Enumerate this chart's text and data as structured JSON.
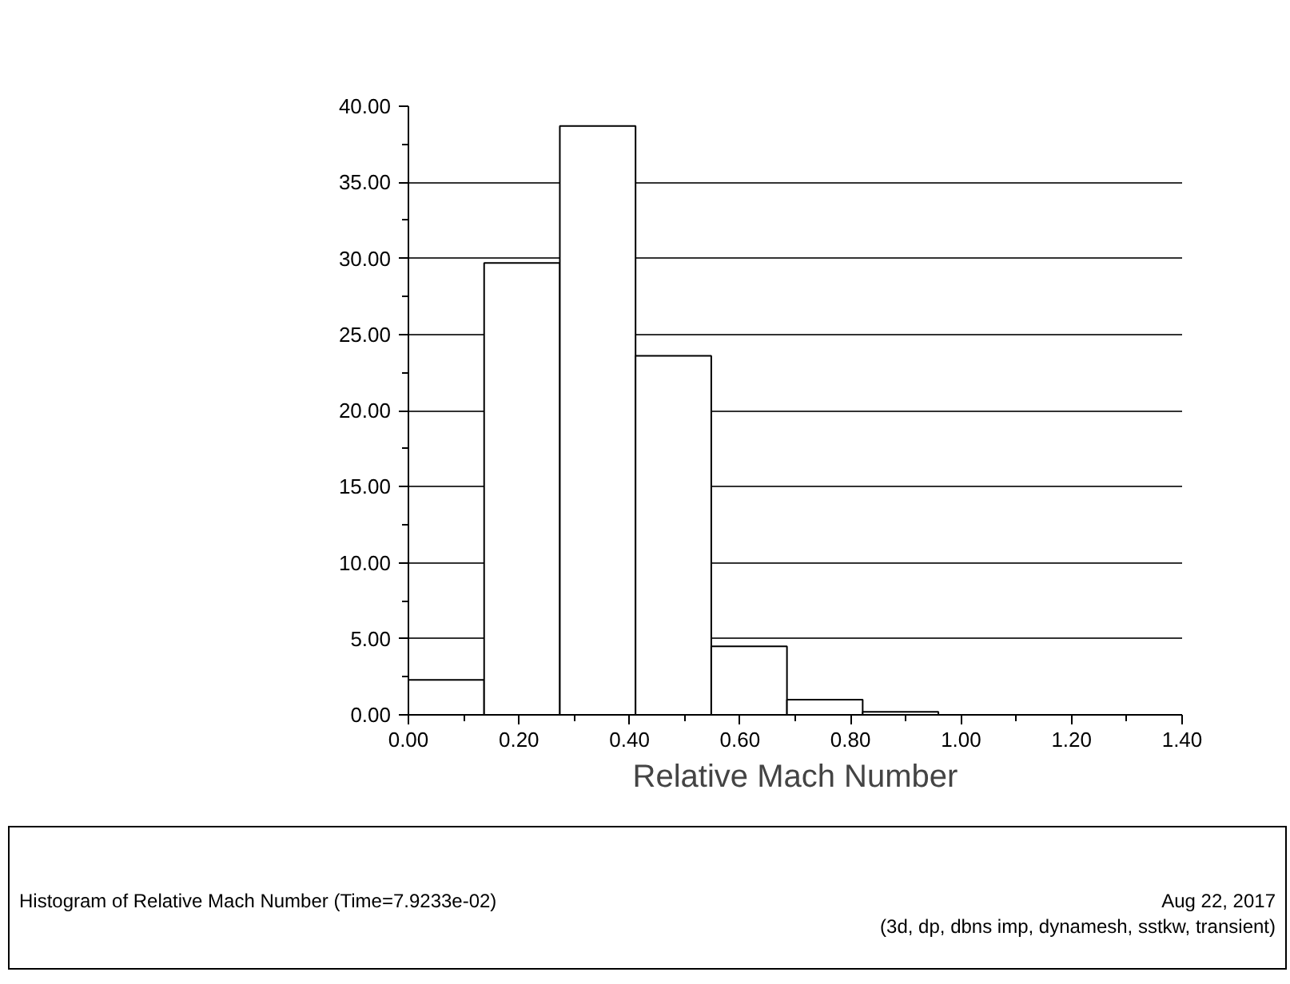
{
  "chart_data": {
    "type": "histogram",
    "xlabel": "Relative Mach Number",
    "bins": [
      0,
      0.137,
      0.274,
      0.411,
      0.548,
      0.685,
      0.822,
      0.959
    ],
    "values": [
      2.3,
      29.7,
      38.7,
      23.6,
      4.5,
      1.0,
      0.2
    ],
    "color": "#ffffff",
    "xlim": [
      0,
      1.4
    ],
    "ylim": [
      0,
      40
    ],
    "xticks": [
      {
        "value": 0,
        "label": "0.00"
      },
      {
        "value": 0.2,
        "label": "0.20"
      },
      {
        "value": 0.4,
        "label": "0.40"
      },
      {
        "value": 0.6,
        "label": "0.60"
      },
      {
        "value": 0.8,
        "label": "0.80"
      },
      {
        "value": 1.0,
        "label": "1.00"
      },
      {
        "value": 1.2,
        "label": "1.20"
      },
      {
        "value": 1.4,
        "label": "1.40"
      }
    ],
    "yticks": [
      {
        "value": 0,
        "label": "0.00"
      },
      {
        "value": 5,
        "label": "5.00"
      },
      {
        "value": 10,
        "label": "10.00"
      },
      {
        "value": 15,
        "label": "15.00"
      },
      {
        "value": 20,
        "label": "20.00"
      },
      {
        "value": 25,
        "label": "25.00"
      },
      {
        "value": 30,
        "label": "30.00"
      },
      {
        "value": 35,
        "label": "35.00"
      },
      {
        "value": 40,
        "label": "40.00"
      }
    ],
    "grid": "y",
    "annotations": [
      "Histogram of Relative Mach Number  (Time=7.9233e-02)",
      "Aug 22, 2017",
      "(3d, dp, dbns imp, dynamesh, sstkw, transient)"
    ]
  }
}
